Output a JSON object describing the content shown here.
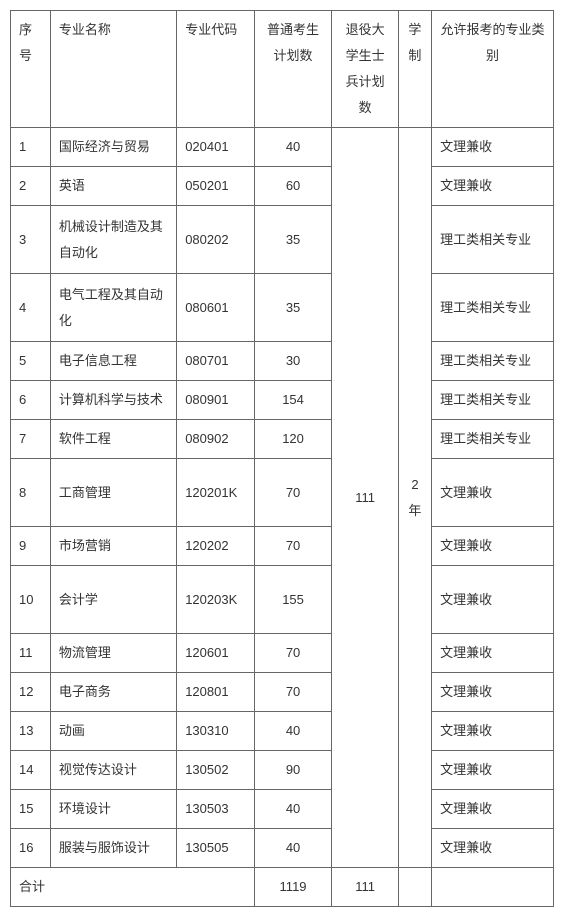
{
  "header": {
    "seq": "序号",
    "name": "专业名称",
    "code": "专业代码",
    "plan": "普通考生计划数",
    "veteran": "退役大学生士兵计划数",
    "duration": "学制",
    "category": "允许报考的专业类别"
  },
  "veteran_total": "111",
  "duration_value": "2年",
  "rows": [
    {
      "seq": "1",
      "name": "国际经济与贸易",
      "code": "020401",
      "plan": "40",
      "cat": "文理兼收",
      "tall": false
    },
    {
      "seq": "2",
      "name": "英语",
      "code": "050201",
      "plan": "60",
      "cat": "文理兼收",
      "tall": false
    },
    {
      "seq": "3",
      "name": "机械设计制造及其自动化",
      "code": "080202",
      "plan": "35",
      "cat": "理工类相关专业",
      "tall": true
    },
    {
      "seq": "4",
      "name": "电气工程及其自动化",
      "code": "080601",
      "plan": "35",
      "cat": "理工类相关专业",
      "tall": true
    },
    {
      "seq": "5",
      "name": "电子信息工程",
      "code": "080701",
      "plan": "30",
      "cat": "理工类相关专业",
      "tall": false
    },
    {
      "seq": "6",
      "name": "计算机科学与技术",
      "code": "080901",
      "plan": "154",
      "cat": "理工类相关专业",
      "tall": false
    },
    {
      "seq": "7",
      "name": "软件工程",
      "code": "080902",
      "plan": "120",
      "cat": "理工类相关专业",
      "tall": false
    },
    {
      "seq": "8",
      "name": "工商管理",
      "code": "120201K",
      "plan": "70",
      "cat": "文理兼收",
      "tall": true
    },
    {
      "seq": "9",
      "name": "市场营销",
      "code": "120202",
      "plan": "70",
      "cat": "文理兼收",
      "tall": false
    },
    {
      "seq": "10",
      "name": "会计学",
      "code": "120203K",
      "plan": "155",
      "cat": "文理兼收",
      "tall": true
    },
    {
      "seq": "11",
      "name": "物流管理",
      "code": "120601",
      "plan": "70",
      "cat": "文理兼收",
      "tall": false
    },
    {
      "seq": "12",
      "name": "电子商务",
      "code": "120801",
      "plan": "70",
      "cat": "文理兼收",
      "tall": false
    },
    {
      "seq": "13",
      "name": "动画",
      "code": "130310",
      "plan": "40",
      "cat": "文理兼收",
      "tall": false
    },
    {
      "seq": "14",
      "name": "视觉传达设计",
      "code": "130502",
      "plan": "90",
      "cat": "文理兼收",
      "tall": false
    },
    {
      "seq": "15",
      "name": "环境设计",
      "code": "130503",
      "plan": "40",
      "cat": "文理兼收",
      "tall": false
    },
    {
      "seq": "16",
      "name": "服装与服饰设计",
      "code": "130505",
      "plan": "40",
      "cat": "文理兼收",
      "tall": false
    }
  ],
  "footer": {
    "label": "合计",
    "plan_total": "1119",
    "veteran_total": "111"
  }
}
